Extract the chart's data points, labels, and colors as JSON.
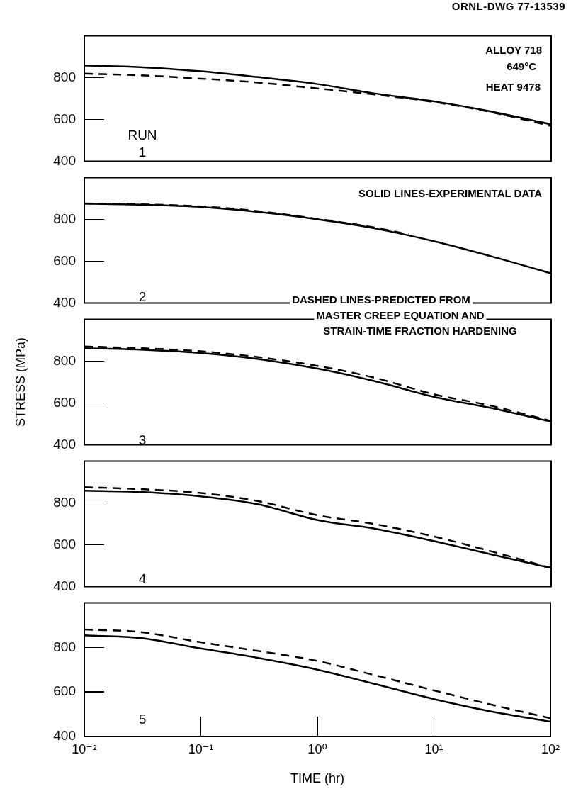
{
  "chart_data": [
    {
      "type": "line",
      "title": "ORNL-DWG 77-13539",
      "x": [
        0.01,
        0.03,
        0.1,
        0.3,
        1,
        3,
        10,
        30,
        100
      ],
      "log": "x",
      "xlim": [
        0.01,
        100
      ],
      "ylim": [
        400,
        1000
      ],
      "yticks": [
        400,
        600,
        800
      ],
      "tick_labels": "y",
      "annotations": [
        "ALLOY 718",
        "649°C",
        "HEAT 9478",
        "RUN",
        "1"
      ],
      "series": [
        {
          "color": "#000000",
          "line_style": "solid",
          "values": [
            858,
            850,
            830,
            803,
            769,
            725,
            686,
            639,
            577
          ]
        },
        {
          "color": "#000000",
          "line_style": "dashed",
          "values": [
            819,
            811,
            795,
            777,
            748,
            720,
            683,
            636,
            569
          ]
        }
      ]
    },
    {
      "type": "line",
      "x": [
        0.01,
        0.03,
        0.1,
        0.3,
        1,
        3,
        10,
        30,
        100
      ],
      "log": "x",
      "xlim": [
        0.01,
        100
      ],
      "ylim": [
        400,
        1000
      ],
      "yticks": [
        400,
        600,
        800
      ],
      "tick_labels": "y",
      "annotations": [
        "SOLID LINES-EXPERIMENTAL DATA",
        "2",
        "DASHED LINES-PREDICTED FROM",
        "MASTER CREEP EQUATION AND",
        "STRAIN-TIME FRACTION HARDENING"
      ],
      "series": [
        {
          "color": "#000000",
          "line_style": "solid",
          "values": [
            875,
            870,
            859,
            836,
            800,
            758,
            695,
            625,
            542
          ]
        },
        {
          "color": "#000000",
          "line_style": "dashed",
          "x": [
            0.01,
            0.03,
            0.1,
            0.3,
            1,
            3,
            6
          ],
          "values": [
            876,
            872,
            862,
            840,
            802,
            762,
            728
          ]
        }
      ]
    },
    {
      "type": "line",
      "x": [
        0.01,
        0.03,
        0.1,
        0.3,
        1,
        3,
        10,
        30,
        100
      ],
      "log": "x",
      "xlim": [
        0.01,
        100
      ],
      "ylim": [
        400,
        1000
      ],
      "yticks": [
        400,
        600,
        800
      ],
      "tick_labels": "y",
      "ylabel": "STRESS (MPa)",
      "annotations": [
        "3"
      ],
      "series": [
        {
          "color": "#000000",
          "line_style": "solid",
          "values": [
            862,
            855,
            839,
            811,
            764,
            706,
            629,
            577,
            511
          ]
        },
        {
          "color": "#000000",
          "line_style": "dashed",
          "values": [
            870,
            862,
            847,
            820,
            777,
            722,
            641,
            588,
            514
          ]
        }
      ]
    },
    {
      "type": "line",
      "x": [
        0.01,
        0.03,
        0.1,
        0.3,
        1,
        3,
        10,
        30,
        100
      ],
      "log": "x",
      "xlim": [
        0.01,
        100
      ],
      "ylim": [
        400,
        1000
      ],
      "yticks": [
        400,
        600,
        800
      ],
      "tick_labels": "y",
      "annotations": [
        "4"
      ],
      "series": [
        {
          "color": "#000000",
          "line_style": "solid",
          "values": [
            858,
            852,
            831,
            795,
            718,
            678,
            617,
            555,
            489
          ]
        },
        {
          "color": "#000000",
          "line_style": "dashed",
          "values": [
            875,
            866,
            847,
            810,
            741,
            700,
            639,
            570,
            489
          ]
        }
      ]
    },
    {
      "type": "line",
      "x": [
        0.01,
        0.03,
        0.1,
        0.3,
        1,
        3,
        10,
        30,
        100
      ],
      "log": "x",
      "xlim": [
        0.01,
        100
      ],
      "xticks": [
        {
          "value": 0.01,
          "label": "10⁻²"
        },
        {
          "value": 0.1,
          "label": "10⁻¹"
        },
        {
          "value": 1,
          "label": "10⁰"
        },
        {
          "value": 10,
          "label": "10¹"
        },
        {
          "value": 100,
          "label": "10²"
        }
      ],
      "ylim": [
        400,
        1000
      ],
      "yticks": [
        400,
        600,
        800
      ],
      "xlabel": "TIME (hr)",
      "annotations": [
        "5"
      ],
      "series": [
        {
          "color": "#000000",
          "line_style": "solid",
          "values": [
            854,
            842,
            795,
            754,
            700,
            638,
            568,
            514,
            467
          ]
        },
        {
          "color": "#000000",
          "line_style": "dashed",
          "values": [
            880,
            869,
            823,
            785,
            739,
            677,
            607,
            545,
            482
          ]
        }
      ]
    }
  ]
}
